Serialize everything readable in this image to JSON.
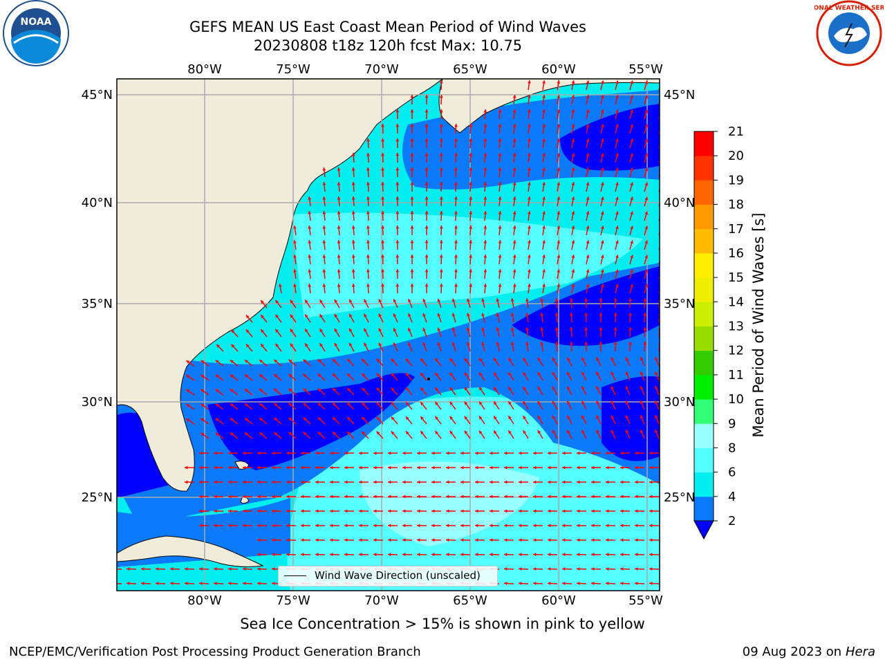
{
  "header": {
    "title_line1": "GEFS MEAN US East Coast Mean Period of Wind Waves",
    "title_line2": "20230808 t18z 120h fcst   Max: 10.75"
  },
  "map": {
    "lon_labels": [
      "80°W",
      "75°W",
      "70°W",
      "65°W",
      "60°W",
      "55°W"
    ],
    "lat_labels": [
      "45°N",
      "40°N",
      "35°N",
      "30°N",
      "25°N"
    ],
    "legend_label": "Wind Wave Direction (unscaled)",
    "arrow_color": "#ff0000",
    "land_color": "#efecdc"
  },
  "colorbar": {
    "label": "Mean Period of Wind Waves [s]",
    "ticks": [
      "2",
      "4",
      "6",
      "8",
      "9",
      "10",
      "11",
      "12",
      "13",
      "14",
      "15",
      "16",
      "17",
      "18",
      "19",
      "20",
      "21"
    ],
    "colors": [
      "#0000ff",
      "#0a7af8",
      "#00eeee",
      "#55ffff",
      "#99ffff",
      "#33ff77",
      "#00ee00",
      "#33cc00",
      "#99dd00",
      "#ccee00",
      "#eeee00",
      "#ffee00",
      "#ffbb00",
      "#ff9900",
      "#ff6600",
      "#ff3300",
      "#ff0000"
    ]
  },
  "notes": {
    "ice_note": "Sea Ice Concentration > 15% is shown in pink to yellow"
  },
  "footer": {
    "left": "NCEP/EMC/Verification Post Processing Product Generation Branch",
    "date": "09 Aug 2023 on",
    "machine": "Hera"
  },
  "logos": {
    "noaa_text": "NOAA",
    "nws_text": "NATIONAL WEATHER SERVICE"
  }
}
